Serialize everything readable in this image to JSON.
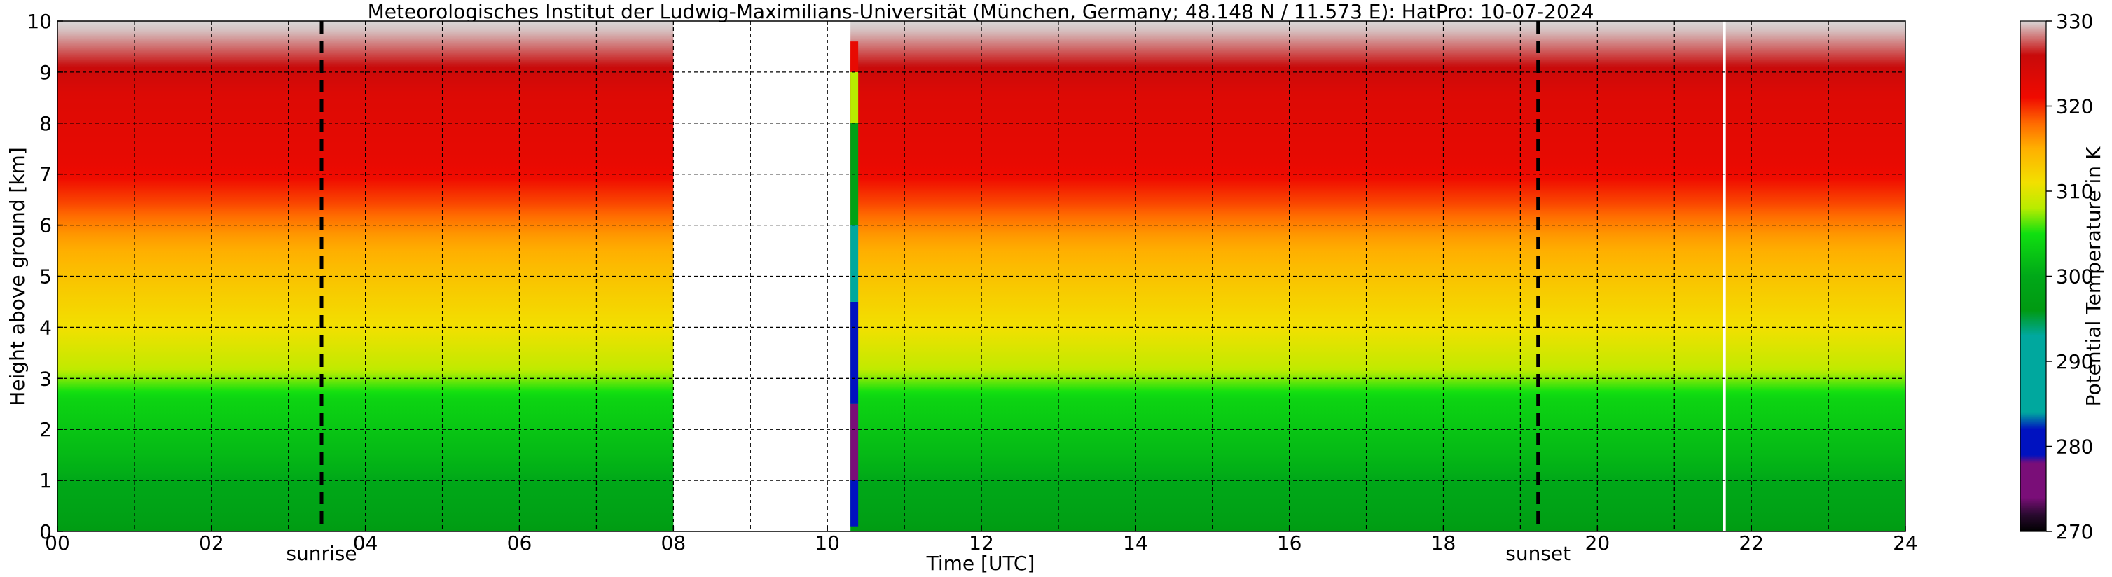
{
  "chart_data": {
    "type": "heatmap",
    "title": "Meteorologisches Institut der Ludwig-Maximilians-Universität (München, Germany; 48.148 N / 11.573 E):    HatPro: 10-07-2024",
    "xlabel": "Time [UTC]",
    "ylabel": "Height above ground [km]",
    "xlim": [
      0,
      24
    ],
    "ylim": [
      0,
      10
    ],
    "x_ticks": [
      0,
      2,
      4,
      6,
      8,
      10,
      12,
      14,
      16,
      18,
      20,
      22,
      24
    ],
    "x_tick_labels": [
      "00",
      "02",
      "04",
      "06",
      "08",
      "10",
      "12",
      "14",
      "16",
      "18",
      "20",
      "22",
      "24"
    ],
    "y_ticks": [
      0,
      1,
      2,
      3,
      4,
      5,
      6,
      7,
      8,
      9,
      10
    ],
    "y_tick_labels": [
      "0",
      "1",
      "2",
      "3",
      "4",
      "5",
      "6",
      "7",
      "8",
      "9",
      "10"
    ],
    "grid": true,
    "extra_vgrid_x": [
      1,
      3,
      5,
      7,
      9,
      11,
      13,
      15,
      17,
      19,
      21,
      23
    ],
    "markers": [
      {
        "x": 3.43,
        "label": "sunrise",
        "style": "dashed"
      },
      {
        "x": 19.23,
        "label": "sunset",
        "style": "dashed"
      }
    ],
    "data_gaps": [
      [
        8.0,
        10.3
      ]
    ],
    "white_gap_x": 21.65,
    "colorbar": {
      "label": "Potential Temperature in K",
      "min": 270,
      "max": 330,
      "ticks": [
        270,
        280,
        290,
        300,
        310,
        320,
        330
      ],
      "stops": [
        {
          "value": 270,
          "color": "#000000"
        },
        {
          "value": 272,
          "color": "#2a0a30"
        },
        {
          "value": 274,
          "color": "#7a0e78"
        },
        {
          "value": 278,
          "color": "#7a0e78"
        },
        {
          "value": 279,
          "color": "#0012c0"
        },
        {
          "value": 282,
          "color": "#0012c0"
        },
        {
          "value": 284,
          "color": "#00a89e"
        },
        {
          "value": 293,
          "color": "#00a89e"
        },
        {
          "value": 296,
          "color": "#009a12"
        },
        {
          "value": 300,
          "color": "#00a818"
        },
        {
          "value": 305,
          "color": "#10e010"
        },
        {
          "value": 308,
          "color": "#b8ec00"
        },
        {
          "value": 311,
          "color": "#f2e000"
        },
        {
          "value": 315,
          "color": "#ffb000"
        },
        {
          "value": 318,
          "color": "#ff6a00"
        },
        {
          "value": 321,
          "color": "#f00a00"
        },
        {
          "value": 326,
          "color": "#c80a0a"
        },
        {
          "value": 330,
          "color": "#d8d8d8"
        }
      ]
    },
    "profile_heights_km": [
      0,
      0.3,
      1.5,
      2.6,
      3.2,
      4.0,
      5.0,
      5.8,
      6.4,
      7.2,
      8.6,
      9.1,
      9.5,
      9.8,
      10
    ],
    "profile_theta_K": [
      296.5,
      298.0,
      301.5,
      304.0,
      308.5,
      311.0,
      313.5,
      316.0,
      319.0,
      322.0,
      323.5,
      326.0,
      328.0,
      329.5,
      330.0
    ],
    "instrument_strip": {
      "x": [
        10.3,
        10.4
      ],
      "segments": [
        {
          "from": 0.1,
          "to": 1.0,
          "value": 280.5
        },
        {
          "from": 1.0,
          "to": 2.5,
          "value": 276.0
        },
        {
          "from": 2.5,
          "to": 4.5,
          "value": 281.0
        },
        {
          "from": 4.5,
          "to": 6.0,
          "value": 291.0
        },
        {
          "from": 6.0,
          "to": 8.0,
          "value": 298.0
        },
        {
          "from": 8.0,
          "to": 9.0,
          "value": 308.0
        },
        {
          "from": 9.0,
          "to": 9.6,
          "value": 322.0
        }
      ]
    }
  }
}
